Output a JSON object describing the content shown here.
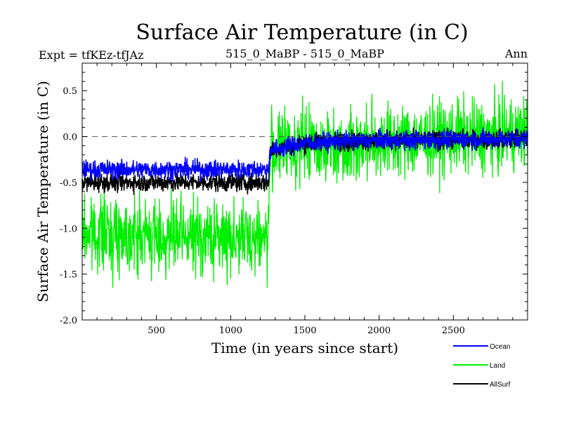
{
  "chart_data": {
    "type": "line",
    "title": "Surface Air Temperature (in C)",
    "subtitle_left": "Expt = tfKEz-tfJAz",
    "subtitle_center": "515_0_MaBP - 515_0_MaBP",
    "subtitle_right": "Ann",
    "xlabel": "Time (in years since start)",
    "ylabel": "Surface Air Temperature (in C)",
    "xlim": [
      0,
      3000
    ],
    "ylim": [
      -2.0,
      0.8
    ],
    "xticks": [
      500,
      1000,
      1500,
      2000,
      2500
    ],
    "yticks": [
      -2.0,
      -1.5,
      -1.0,
      -0.5,
      0.0,
      0.5
    ],
    "ytick_labels": [
      "-2.0",
      "-1.5",
      "-1.0",
      "-0.5",
      "0.0",
      "0.5"
    ],
    "reference_line": {
      "y": 0.0,
      "style": "dashed"
    },
    "legend_placement": "bottom-right",
    "series": [
      {
        "name": "Land",
        "color": "#00ee00",
        "x": [
          0,
          250,
          500,
          750,
          1000,
          1255,
          1265,
          1500,
          1750,
          2000,
          2250,
          2500,
          2750,
          3000
        ],
        "values": [
          -1.05,
          -1.05,
          -1.1,
          -1.1,
          -1.1,
          -1.1,
          -0.15,
          -0.1,
          -0.1,
          -0.05,
          -0.05,
          0.0,
          0.0,
          0.05
        ]
      },
      {
        "name": "AllSurf",
        "color": "#000000",
        "x": [
          0,
          250,
          500,
          750,
          1000,
          1255,
          1265,
          1500,
          1750,
          2000,
          2250,
          2500,
          2750,
          3000
        ],
        "values": [
          -0.5,
          -0.5,
          -0.5,
          -0.5,
          -0.5,
          -0.5,
          -0.15,
          -0.07,
          -0.05,
          -0.04,
          -0.04,
          -0.03,
          -0.03,
          -0.02
        ]
      },
      {
        "name": "Ocean",
        "color": "#0000ff",
        "x": [
          0,
          250,
          500,
          750,
          1000,
          1255,
          1265,
          1500,
          1750,
          2000,
          2250,
          2500,
          2750,
          3000
        ],
        "values": [
          -0.36,
          -0.36,
          -0.36,
          -0.36,
          -0.36,
          -0.36,
          -0.15,
          -0.07,
          -0.05,
          -0.04,
          -0.04,
          -0.03,
          -0.03,
          -0.02
        ]
      }
    ],
    "noise_amplitude": {
      "Land": 0.2,
      "AllSurf": 0.05,
      "Ocean": 0.05
    },
    "legend": [
      {
        "name": "Ocean",
        "color": "#0000ff"
      },
      {
        "name": "Land",
        "color": "#00ee00"
      },
      {
        "name": "AllSurf",
        "color": "#000000"
      }
    ]
  }
}
